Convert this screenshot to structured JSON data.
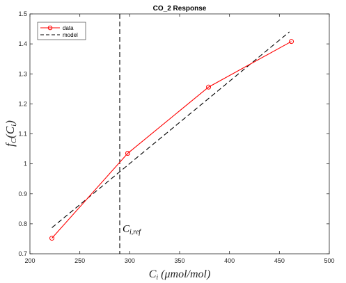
{
  "chart_data": {
    "type": "line",
    "title": "CO_2 Response",
    "xlabel": {
      "main": "C",
      "sub": "i",
      "rest": " (μmol/mol)"
    },
    "ylabel": {
      "main": "f",
      "sub": "C",
      "rest": "(C",
      "rest_sub": "i",
      "close": ")"
    },
    "xlim": [
      200,
      500
    ],
    "ylim": [
      0.7,
      1.5
    ],
    "xticks": [
      200,
      250,
      300,
      350,
      400,
      450,
      500
    ],
    "yticks": [
      0.7,
      0.8,
      0.9,
      1.0,
      1.1,
      1.2,
      1.3,
      1.4,
      1.5
    ],
    "ytick_labels": [
      "0.7",
      "0.8",
      "0.9",
      "1",
      "1.1",
      "1.2",
      "1.3",
      "1.4",
      "1.5"
    ],
    "grid": false,
    "legend_position": "top-left",
    "series": [
      {
        "name": "data",
        "style": "solid-with-circles",
        "color": "#ff0000",
        "x": [
          222,
          298,
          379,
          462
        ],
        "y": [
          0.752,
          1.035,
          1.256,
          1.408
        ]
      },
      {
        "name": "model",
        "style": "dashed",
        "color": "#000000",
        "x": [
          222,
          460
        ],
        "y": [
          0.787,
          1.44
        ]
      }
    ],
    "vertical_line": {
      "x": 290,
      "style": "dashed",
      "color": "#000000"
    },
    "annotation": {
      "main": "C",
      "sub": "i,ref",
      "x": 290,
      "y": 0.785
    }
  }
}
